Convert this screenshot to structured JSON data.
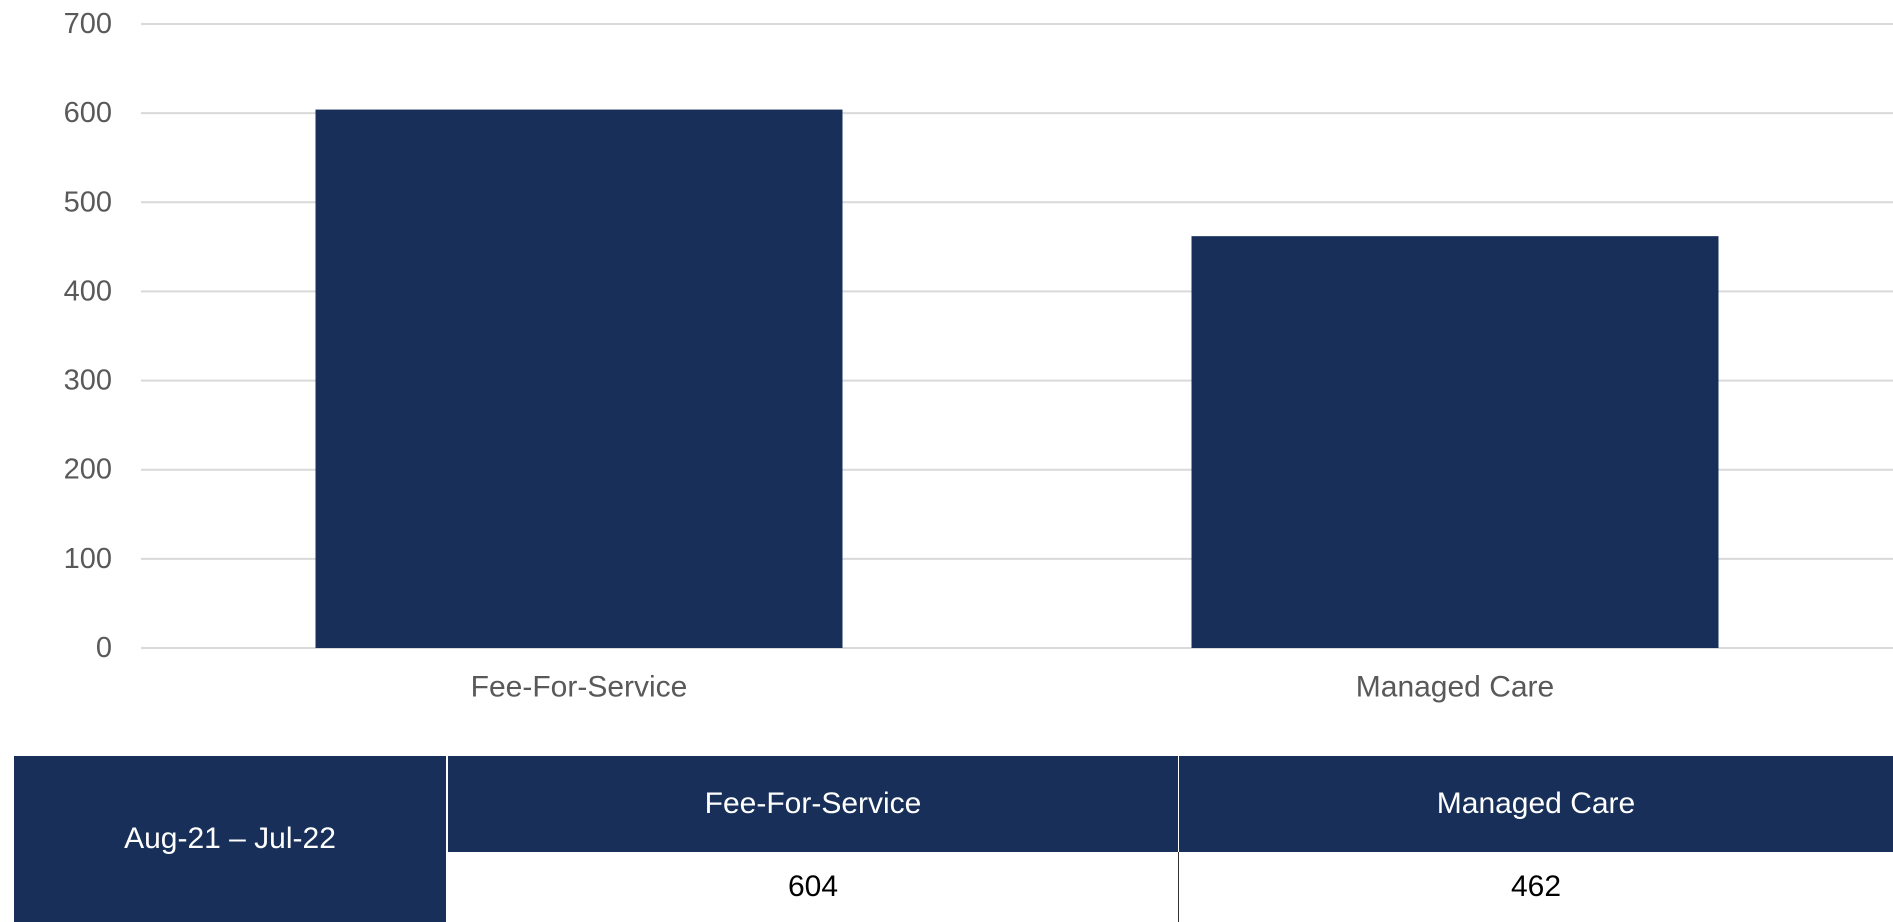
{
  "chart_data": {
    "type": "bar",
    "categories": [
      "Fee-For-Service",
      "Managed Care"
    ],
    "values": [
      604,
      462
    ],
    "ylim": [
      0,
      700
    ],
    "yticks": [
      0,
      100,
      200,
      300,
      400,
      500,
      600,
      700
    ],
    "grid": true,
    "bar_color": "#183059",
    "gridline_color": "#d9d9d9",
    "tick_label_color": "#595959"
  },
  "table": {
    "row_label": "Aug-21 – Jul-22",
    "headers": [
      "Fee-For-Service",
      "Managed Care"
    ],
    "values": [
      "604",
      "462"
    ],
    "header_color": "#183059"
  }
}
